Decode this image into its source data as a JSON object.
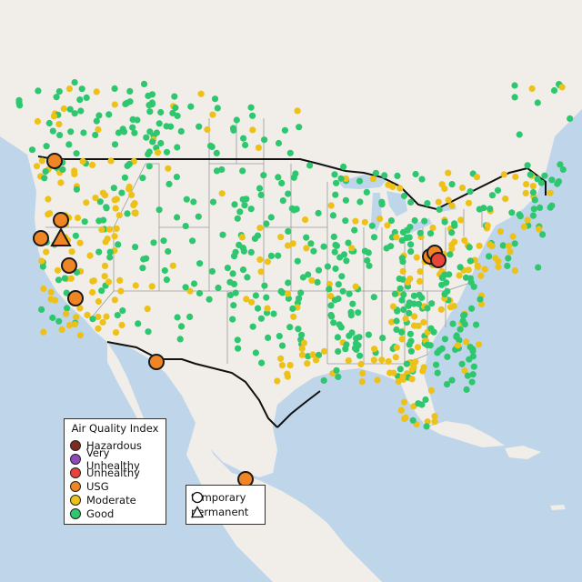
{
  "colors": {
    "ocean": "#bfd6ea",
    "land": "#f1eeea",
    "us_land": "#f5f3f0",
    "border": "#111111",
    "state_lines": "#9b9b9b"
  },
  "legend_aqi": {
    "title": "Air Quality Index",
    "items": [
      {
        "label": "Hazardous",
        "color": "#7e2b1f"
      },
      {
        "label": "Very Unhealthy",
        "color": "#8f4ab8"
      },
      {
        "label": "Unhealthy",
        "color": "#e8443a"
      },
      {
        "label": "USG",
        "color": "#ef8524"
      },
      {
        "label": "Moderate",
        "color": "#eec119"
      },
      {
        "label": "Good",
        "color": "#2ec770"
      }
    ]
  },
  "legend_type": {
    "items": [
      {
        "label": "temporary",
        "symbol": "circle"
      },
      {
        "label": "permanent",
        "symbol": "triangle"
      }
    ]
  }
}
